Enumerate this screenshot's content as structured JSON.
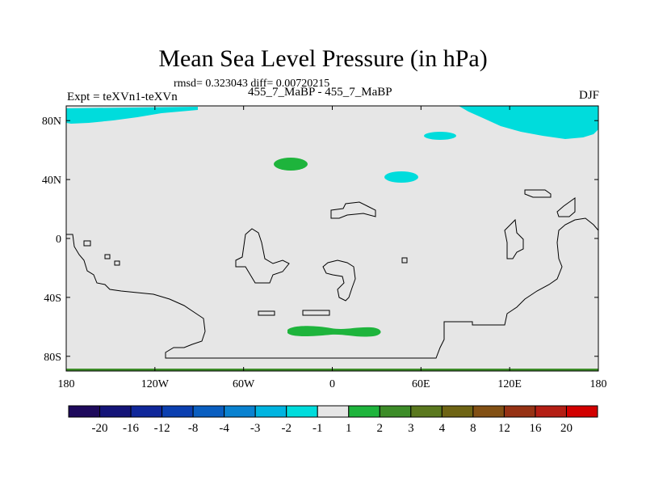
{
  "header": {
    "title": "Mean Sea Level Pressure (in hPa)",
    "stats": "rmsd= 0.323043 diff= 0.00720215",
    "experiment": "Expt = teXVn1-teXVn",
    "cases": "455_7_MaBP - 455_7_MaBP",
    "season": "DJF"
  },
  "map": {
    "lat_ticks": [
      "80N",
      "40N",
      "0",
      "40S",
      "80S"
    ],
    "lat_values": [
      80,
      40,
      0,
      -40,
      -80
    ],
    "lon_ticks": [
      "180",
      "120W",
      "60W",
      "0",
      "60E",
      "120E",
      "180"
    ],
    "lon_values": [
      -180,
      -120,
      -60,
      0,
      60,
      120,
      180
    ],
    "lon_range": [
      -180,
      180
    ],
    "lat_range": [
      -90,
      90
    ],
    "background_color": "#e6e6e6",
    "coastline_color": "#000000"
  },
  "colorbar": {
    "labels": [
      "-20",
      "-16",
      "-12",
      "-8",
      "-4",
      "-3",
      "-2",
      "-1",
      "1",
      "2",
      "3",
      "4",
      "8",
      "12",
      "16",
      "20"
    ],
    "colors": [
      "#1e0a5c",
      "#141478",
      "#10279a",
      "#0b3fb0",
      "#0a5ec0",
      "#0a82d0",
      "#00b4e0",
      "#00dcdc",
      "#e6e6e6",
      "#1eb43c",
      "#3c8c28",
      "#5a781e",
      "#6e6414",
      "#825014",
      "#963214",
      "#b41e14",
      "#d20000"
    ]
  }
}
